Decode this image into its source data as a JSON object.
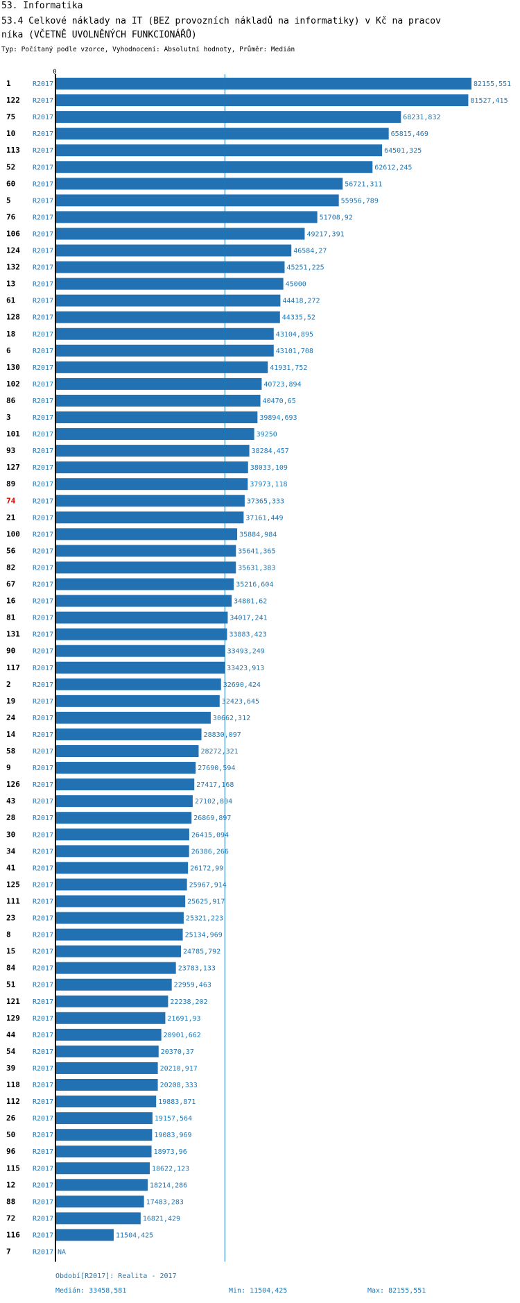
{
  "section_title": "53. Informatika",
  "chart_title_line1": "53.4 Celkové náklady na IT (BEZ provozních nákladů na informatiky) v Kč na pracov",
  "chart_title_line2": "níka (VČETNĚ UVOLNĚNÝCH FUNKCIONÁŘŮ)",
  "subtitle": "Typ: Počítaný podle vzorce, Vyhodnocení: Absolutní hodnoty, Průměr: Medián",
  "colors": {
    "bar": "#2271b3",
    "text": "#1f77b4",
    "highlight": "#e00000",
    "axis": "#000000"
  },
  "chart_data": {
    "type": "bar",
    "orientation": "horizontal",
    "axis_label_zero": "0",
    "xlim": [
      0,
      82155.551
    ],
    "median": 33458.581,
    "highlight_id": "74",
    "rows": [
      {
        "id": "1",
        "period": "R2017",
        "value": 82155.551,
        "label": "82155,551"
      },
      {
        "id": "122",
        "period": "R2017",
        "value": 81527.415,
        "label": "81527,415"
      },
      {
        "id": "75",
        "period": "R2017",
        "value": 68231.832,
        "label": "68231,832"
      },
      {
        "id": "10",
        "period": "R2017",
        "value": 65815.469,
        "label": "65815,469"
      },
      {
        "id": "113",
        "period": "R2017",
        "value": 64501.325,
        "label": "64501,325"
      },
      {
        "id": "52",
        "period": "R2017",
        "value": 62612.245,
        "label": "62612,245"
      },
      {
        "id": "60",
        "period": "R2017",
        "value": 56721.311,
        "label": "56721,311"
      },
      {
        "id": "5",
        "period": "R2017",
        "value": 55956.789,
        "label": "55956,789"
      },
      {
        "id": "76",
        "period": "R2017",
        "value": 51708.92,
        "label": "51708,92"
      },
      {
        "id": "106",
        "period": "R2017",
        "value": 49217.391,
        "label": "49217,391"
      },
      {
        "id": "124",
        "period": "R2017",
        "value": 46584.27,
        "label": "46584,27"
      },
      {
        "id": "132",
        "period": "R2017",
        "value": 45251.225,
        "label": "45251,225"
      },
      {
        "id": "13",
        "period": "R2017",
        "value": 45000,
        "label": "45000"
      },
      {
        "id": "61",
        "period": "R2017",
        "value": 44418.272,
        "label": "44418,272"
      },
      {
        "id": "128",
        "period": "R2017",
        "value": 44335.52,
        "label": "44335,52"
      },
      {
        "id": "18",
        "period": "R2017",
        "value": 43104.895,
        "label": "43104,895"
      },
      {
        "id": "6",
        "period": "R2017",
        "value": 43101.708,
        "label": "43101,708"
      },
      {
        "id": "130",
        "period": "R2017",
        "value": 41931.752,
        "label": "41931,752"
      },
      {
        "id": "102",
        "period": "R2017",
        "value": 40723.894,
        "label": "40723,894"
      },
      {
        "id": "86",
        "period": "R2017",
        "value": 40470.65,
        "label": "40470,65"
      },
      {
        "id": "3",
        "period": "R2017",
        "value": 39894.693,
        "label": "39894,693"
      },
      {
        "id": "101",
        "period": "R2017",
        "value": 39250,
        "label": "39250"
      },
      {
        "id": "93",
        "period": "R2017",
        "value": 38284.457,
        "label": "38284,457"
      },
      {
        "id": "127",
        "period": "R2017",
        "value": 38033.109,
        "label": "38033,109"
      },
      {
        "id": "89",
        "period": "R2017",
        "value": 37973.118,
        "label": "37973,118"
      },
      {
        "id": "74",
        "period": "R2017",
        "value": 37365.333,
        "label": "37365,333"
      },
      {
        "id": "21",
        "period": "R2017",
        "value": 37161.449,
        "label": "37161,449"
      },
      {
        "id": "100",
        "period": "R2017",
        "value": 35884.984,
        "label": "35884,984"
      },
      {
        "id": "56",
        "period": "R2017",
        "value": 35641.365,
        "label": "35641,365"
      },
      {
        "id": "82",
        "period": "R2017",
        "value": 35631.383,
        "label": "35631,383"
      },
      {
        "id": "67",
        "period": "R2017",
        "value": 35216.604,
        "label": "35216,604"
      },
      {
        "id": "16",
        "period": "R2017",
        "value": 34801.62,
        "label": "34801,62"
      },
      {
        "id": "81",
        "period": "R2017",
        "value": 34017.241,
        "label": "34017,241"
      },
      {
        "id": "131",
        "period": "R2017",
        "value": 33883.423,
        "label": "33883,423"
      },
      {
        "id": "90",
        "period": "R2017",
        "value": 33493.249,
        "label": "33493,249"
      },
      {
        "id": "117",
        "period": "R2017",
        "value": 33423.913,
        "label": "33423,913"
      },
      {
        "id": "2",
        "period": "R2017",
        "value": 32690.424,
        "label": "32690,424"
      },
      {
        "id": "19",
        "period": "R2017",
        "value": 32423.645,
        "label": "32423,645"
      },
      {
        "id": "24",
        "period": "R2017",
        "value": 30662.312,
        "label": "30662,312"
      },
      {
        "id": "14",
        "period": "R2017",
        "value": 28830.097,
        "label": "28830,097"
      },
      {
        "id": "58",
        "period": "R2017",
        "value": 28272.321,
        "label": "28272,321"
      },
      {
        "id": "9",
        "period": "R2017",
        "value": 27690.594,
        "label": "27690,594"
      },
      {
        "id": "126",
        "period": "R2017",
        "value": 27417.168,
        "label": "27417,168"
      },
      {
        "id": "43",
        "period": "R2017",
        "value": 27102.804,
        "label": "27102,804"
      },
      {
        "id": "28",
        "period": "R2017",
        "value": 26869.897,
        "label": "26869,897"
      },
      {
        "id": "30",
        "period": "R2017",
        "value": 26415.094,
        "label": "26415,094"
      },
      {
        "id": "34",
        "period": "R2017",
        "value": 26386.266,
        "label": "26386,266"
      },
      {
        "id": "41",
        "period": "R2017",
        "value": 26172.99,
        "label": "26172,99"
      },
      {
        "id": "125",
        "period": "R2017",
        "value": 25967.914,
        "label": "25967,914"
      },
      {
        "id": "111",
        "period": "R2017",
        "value": 25625.917,
        "label": "25625,917"
      },
      {
        "id": "23",
        "period": "R2017",
        "value": 25321.223,
        "label": "25321,223"
      },
      {
        "id": "8",
        "period": "R2017",
        "value": 25134.969,
        "label": "25134,969"
      },
      {
        "id": "15",
        "period": "R2017",
        "value": 24785.792,
        "label": "24785,792"
      },
      {
        "id": "84",
        "period": "R2017",
        "value": 23783.133,
        "label": "23783,133"
      },
      {
        "id": "51",
        "period": "R2017",
        "value": 22959.463,
        "label": "22959,463"
      },
      {
        "id": "121",
        "period": "R2017",
        "value": 22238.202,
        "label": "22238,202"
      },
      {
        "id": "129",
        "period": "R2017",
        "value": 21691.93,
        "label": "21691,93"
      },
      {
        "id": "44",
        "period": "R2017",
        "value": 20901.662,
        "label": "20901,662"
      },
      {
        "id": "54",
        "period": "R2017",
        "value": 20370.37,
        "label": "20370,37"
      },
      {
        "id": "39",
        "period": "R2017",
        "value": 20210.917,
        "label": "20210,917"
      },
      {
        "id": "118",
        "period": "R2017",
        "value": 20208.333,
        "label": "20208,333"
      },
      {
        "id": "112",
        "period": "R2017",
        "value": 19883.871,
        "label": "19883,871"
      },
      {
        "id": "26",
        "period": "R2017",
        "value": 19157.564,
        "label": "19157,564"
      },
      {
        "id": "50",
        "period": "R2017",
        "value": 19083.969,
        "label": "19083,969"
      },
      {
        "id": "96",
        "period": "R2017",
        "value": 18973.96,
        "label": "18973,96"
      },
      {
        "id": "115",
        "period": "R2017",
        "value": 18622.123,
        "label": "18622,123"
      },
      {
        "id": "12",
        "period": "R2017",
        "value": 18214.286,
        "label": "18214,286"
      },
      {
        "id": "88",
        "period": "R2017",
        "value": 17483.283,
        "label": "17483,283"
      },
      {
        "id": "72",
        "period": "R2017",
        "value": 16821.429,
        "label": "16821,429"
      },
      {
        "id": "116",
        "period": "R2017",
        "value": 11504.425,
        "label": "11504,425"
      },
      {
        "id": "7",
        "period": "R2017",
        "value": null,
        "label": "NA"
      }
    ]
  },
  "footer": {
    "period_note": "Období[R2017]: Realita - 2017",
    "median_text": "Medián: 33458,581",
    "min_text": "Min: 11504,425",
    "max_text": "Max: 82155,551"
  }
}
